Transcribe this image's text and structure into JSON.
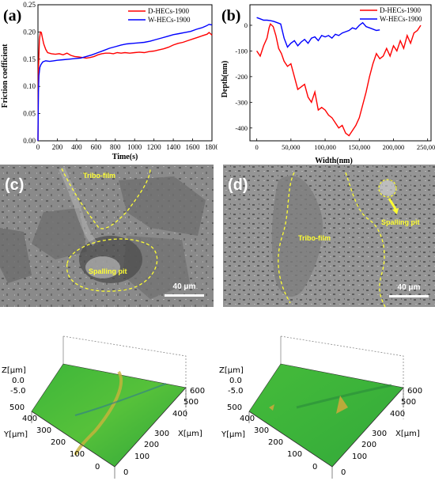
{
  "panels": {
    "a": "(a)",
    "b": "(b)",
    "c": "(c)",
    "d": "(d)"
  },
  "chart_data": [
    {
      "type": "line",
      "panel": "(a)",
      "xlabel": "Time(s)",
      "ylabel": "Friction coefficient",
      "xlim": [
        0,
        1800
      ],
      "ylim": [
        0,
        0.25
      ],
      "xticks": [
        "0",
        "200",
        "400",
        "600",
        "800",
        "1000",
        "1200",
        "1400",
        "1600",
        "1800"
      ],
      "yticks": [
        "0.00",
        "0.05",
        "0.10",
        "0.15",
        "0.20",
        "0.25"
      ],
      "legend_position": "top-right",
      "series": [
        {
          "name": "D-HECs-1900",
          "color": "#ff0000",
          "x": [
            0,
            5,
            15,
            25,
            35,
            45,
            60,
            80,
            100,
            140,
            180,
            220,
            260,
            300,
            340,
            380,
            420,
            460,
            500,
            540,
            580,
            620,
            660,
            700,
            740,
            780,
            820,
            860,
            900,
            950,
            1000,
            1050,
            1100,
            1150,
            1200,
            1250,
            1300,
            1350,
            1400,
            1450,
            1500,
            1550,
            1600,
            1650,
            1700,
            1750,
            1770,
            1790,
            1800
          ],
          "y": [
            0.0,
            0.13,
            0.185,
            0.2,
            0.199,
            0.19,
            0.178,
            0.168,
            0.162,
            0.16,
            0.159,
            0.16,
            0.158,
            0.161,
            0.157,
            0.155,
            0.154,
            0.153,
            0.152,
            0.153,
            0.155,
            0.158,
            0.16,
            0.161,
            0.161,
            0.16,
            0.162,
            0.161,
            0.162,
            0.161,
            0.162,
            0.163,
            0.162,
            0.164,
            0.165,
            0.167,
            0.169,
            0.172,
            0.176,
            0.179,
            0.181,
            0.184,
            0.187,
            0.19,
            0.193,
            0.196,
            0.199,
            0.196,
            0.194
          ]
        },
        {
          "name": "W-HECs-1900",
          "color": "#0000ff",
          "x": [
            0,
            5,
            10,
            20,
            30,
            50,
            80,
            120,
            160,
            200,
            260,
            320,
            380,
            440,
            500,
            560,
            620,
            680,
            740,
            800,
            860,
            920,
            980,
            1040,
            1100,
            1160,
            1220,
            1280,
            1340,
            1400,
            1460,
            1520,
            1580,
            1640,
            1700,
            1740,
            1770,
            1800
          ],
          "y": [
            0.0,
            0.09,
            0.12,
            0.135,
            0.14,
            0.145,
            0.147,
            0.146,
            0.147,
            0.148,
            0.149,
            0.15,
            0.151,
            0.152,
            0.155,
            0.158,
            0.162,
            0.166,
            0.17,
            0.173,
            0.176,
            0.178,
            0.179,
            0.18,
            0.181,
            0.183,
            0.186,
            0.189,
            0.192,
            0.195,
            0.197,
            0.199,
            0.201,
            0.205,
            0.208,
            0.211,
            0.214,
            0.213
          ]
        }
      ]
    },
    {
      "type": "line",
      "panel": "(b)",
      "xlabel": "Width(nm)",
      "ylabel": "Depth(nm)",
      "xlim": [
        -10000,
        255000
      ],
      "ylim": [
        -450,
        80
      ],
      "xticks": [
        "0",
        "50,000",
        "100,000",
        "150,000",
        "200,000",
        "250,000"
      ],
      "xtick_values": [
        0,
        50000,
        100000,
        150000,
        200000,
        250000
      ],
      "yticks": [
        "0",
        "-100",
        "-200",
        "-300",
        "-400"
      ],
      "ytick_values": [
        0,
        -100,
        -200,
        -300,
        -400
      ],
      "legend_position": "top-right",
      "series": [
        {
          "name": "D-HECs-1900",
          "color": "#ff0000",
          "x": [
            0,
            5000,
            10000,
            15000,
            18000,
            20000,
            24000,
            28000,
            32000,
            36000,
            40000,
            45000,
            50000,
            55000,
            60000,
            65000,
            70000,
            75000,
            80000,
            85000,
            90000,
            95000,
            100000,
            105000,
            110000,
            115000,
            120000,
            125000,
            130000,
            135000,
            140000,
            145000,
            150000,
            155000,
            160000,
            165000,
            170000,
            175000,
            180000,
            185000,
            190000,
            195000,
            200000,
            205000,
            210000,
            215000,
            220000,
            225000,
            230000,
            235000,
            240000
          ],
          "y": [
            -100,
            -120,
            -80,
            -50,
            -10,
            5,
            -5,
            -40,
            -90,
            -110,
            -140,
            -160,
            -150,
            -200,
            -250,
            -240,
            -230,
            -280,
            -300,
            -260,
            -330,
            -320,
            -330,
            -350,
            -360,
            -380,
            -400,
            -390,
            -420,
            -430,
            -410,
            -390,
            -360,
            -310,
            -260,
            -200,
            -150,
            -110,
            -130,
            -120,
            -90,
            -120,
            -80,
            -100,
            -60,
            -90,
            -40,
            -70,
            -30,
            -20,
            0
          ]
        },
        {
          "name": "W-HECs-1900",
          "color": "#0000ff",
          "x": [
            0,
            5000,
            10000,
            15000,
            20000,
            25000,
            30000,
            35000,
            40000,
            45000,
            50000,
            55000,
            60000,
            65000,
            70000,
            75000,
            80000,
            85000,
            90000,
            95000,
            100000,
            105000,
            110000,
            115000,
            120000,
            125000,
            130000,
            135000,
            140000,
            145000,
            150000,
            155000,
            160000,
            165000,
            170000,
            175000,
            180000
          ],
          "y": [
            30,
            25,
            20,
            20,
            18,
            15,
            10,
            5,
            -50,
            -85,
            -70,
            -60,
            -80,
            -65,
            -55,
            -70,
            -50,
            -45,
            -60,
            -40,
            -45,
            -40,
            -50,
            -35,
            -40,
            -30,
            -25,
            -20,
            -10,
            -15,
            0,
            10,
            -5,
            -10,
            -15,
            -20,
            -18
          ]
        }
      ]
    }
  ],
  "sem": {
    "c": {
      "tribo_label": "Tribo-film",
      "spalling_label": "Spalling pit",
      "scale": "40 μm"
    },
    "d": {
      "tribo_label": "Tribo-film",
      "spalling_label": "Spalling pit",
      "scale": "40 μm"
    }
  },
  "profilometry": {
    "left": {
      "z_label": "Z[μm]",
      "z_ticks": [
        "0.0",
        "-5.0"
      ],
      "y_label": "Y[μm]",
      "y_ticks": [
        "500",
        "400",
        "300",
        "200",
        "100",
        "0"
      ],
      "x_label": "X[μm]",
      "x_ticks": [
        "600",
        "500",
        "400",
        "300",
        "200",
        "100",
        "0"
      ]
    },
    "right": {
      "z_label": "Z[μm]",
      "z_ticks": [
        "0.0",
        "-5.0"
      ],
      "y_label": "Y[μm]",
      "y_ticks": [
        "500",
        "400",
        "300",
        "200",
        "100",
        "0"
      ],
      "x_label": "X[μm]",
      "x_ticks": [
        "600",
        "500",
        "400",
        "300",
        "200",
        "100",
        "0"
      ]
    }
  },
  "colors": {
    "sem_bg": "#8c8c8c",
    "annotation": "#ffff33",
    "surface_green": "#3fb53a"
  }
}
